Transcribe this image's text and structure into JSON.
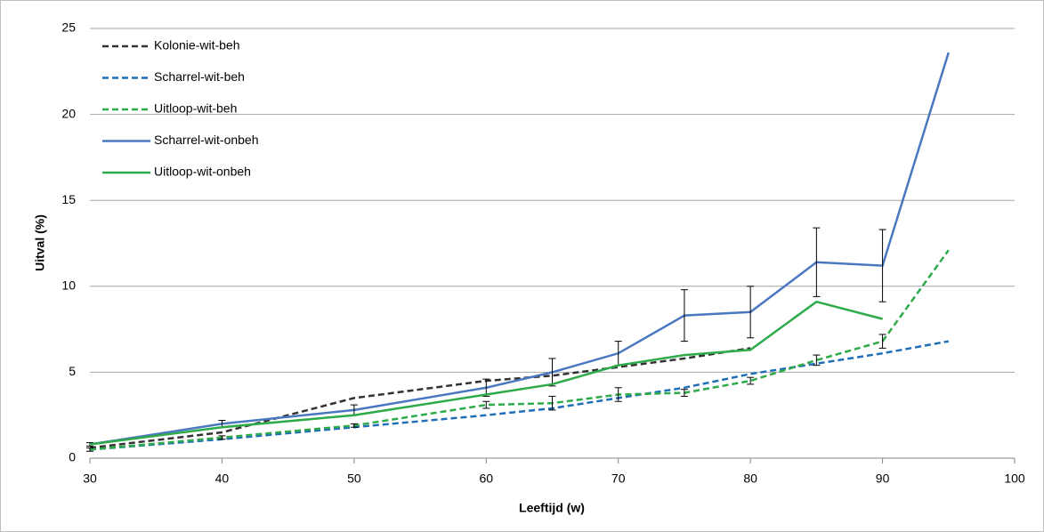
{
  "chart_data": {
    "type": "line",
    "x": [
      30,
      40,
      50,
      60,
      65,
      70,
      75,
      80,
      85,
      90,
      95
    ],
    "series": [
      {
        "name": "Kolonie-wit-beh",
        "color": "#333333",
        "dashed": true,
        "values": [
          0.6,
          1.5,
          3.5,
          4.5,
          4.8,
          5.3,
          5.8,
          6.4,
          null,
          null,
          null
        ]
      },
      {
        "name": "Scharrel-wit-beh",
        "color": "#1f6fb8",
        "dashed": true,
        "values": [
          0.5,
          1.1,
          1.8,
          2.5,
          2.9,
          3.5,
          4.1,
          4.9,
          5.5,
          6.1,
          6.8
        ]
      },
      {
        "name": "Uitloop-wit-beh",
        "color": "#2eaa4a",
        "dashed": true,
        "values": [
          0.5,
          1.2,
          1.9,
          3.1,
          3.2,
          3.7,
          3.8,
          4.5,
          5.7,
          6.8,
          12.1
        ],
        "errors": [
          0.1,
          0.1,
          0.1,
          0.2,
          0.4,
          0.4,
          0.2,
          0.2,
          0.3,
          0.4,
          null
        ]
      },
      {
        "name": "Scharrel-wit-onbeh",
        "color": "#4a78c0",
        "dashed": false,
        "values": [
          0.8,
          2.0,
          2.8,
          4.1,
          5.0,
          6.1,
          8.3,
          8.5,
          11.4,
          11.2,
          23.6
        ],
        "errors": [
          0.1,
          0.2,
          0.3,
          0.5,
          0.8,
          0.7,
          1.5,
          1.5,
          2.0,
          2.1,
          null
        ]
      },
      {
        "name": "Uitloop-wit-onbeh",
        "color": "#2eaa4a",
        "dashed": false,
        "values": [
          0.8,
          1.8,
          2.5,
          3.7,
          4.3,
          5.4,
          6.0,
          6.3,
          9.1,
          8.1,
          null
        ]
      }
    ],
    "x_label": "Leeftijd (w)",
    "y_label": "Uitval (%)",
    "xlim": [
      30,
      100
    ],
    "xticks": [
      30,
      40,
      50,
      60,
      70,
      80,
      90,
      100
    ],
    "ylim": [
      0,
      25
    ],
    "yticks": [
      0,
      5,
      10,
      15,
      20,
      25
    ],
    "grid": true,
    "legend": "upper left"
  }
}
